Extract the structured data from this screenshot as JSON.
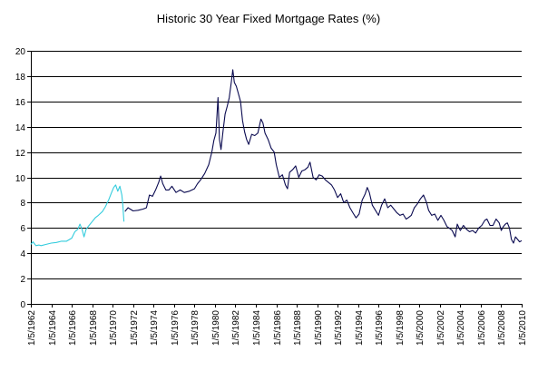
{
  "chart_data": {
    "type": "line",
    "title": "Historic 30 Year Fixed Mortgage Rates (%)",
    "xlabel": "",
    "ylabel": "",
    "ylim": [
      0,
      20
    ],
    "y_ticks": [
      0,
      2,
      4,
      6,
      8,
      10,
      12,
      14,
      16,
      18,
      20
    ],
    "x_range": [
      1962.0,
      2010.0
    ],
    "x_ticks": [
      "1/5/1962",
      "1/5/1964",
      "1/5/1966",
      "1/5/1968",
      "1/5/1970",
      "1/5/1972",
      "1/5/1974",
      "1/5/1976",
      "1/5/1978",
      "1/5/1980",
      "1/5/1982",
      "1/5/1984",
      "1/5/1986",
      "1/5/1988",
      "1/5/1990",
      "1/5/1992",
      "1/5/1994",
      "1/5/1996",
      "1/5/1998",
      "1/5/2000",
      "1/5/2002",
      "1/5/2004",
      "1/5/2006",
      "1/5/2008",
      "1/5/2010"
    ],
    "grid": "horizontal",
    "legend": "none",
    "series": [
      {
        "color": "#33ccdd",
        "points": [
          [
            1962.0,
            4.7
          ],
          [
            1962.2,
            4.9
          ],
          [
            1962.5,
            4.6
          ],
          [
            1962.8,
            4.65
          ],
          [
            1963.0,
            4.6
          ],
          [
            1963.5,
            4.7
          ],
          [
            1964.0,
            4.8
          ],
          [
            1964.5,
            4.85
          ],
          [
            1965.0,
            4.95
          ],
          [
            1965.5,
            4.95
          ],
          [
            1966.0,
            5.2
          ],
          [
            1966.3,
            5.7
          ],
          [
            1966.6,
            5.9
          ],
          [
            1966.8,
            6.3
          ],
          [
            1967.0,
            5.9
          ],
          [
            1967.2,
            5.3
          ],
          [
            1967.4,
            5.9
          ],
          [
            1967.7,
            6.2
          ],
          [
            1968.0,
            6.5
          ],
          [
            1968.3,
            6.8
          ],
          [
            1968.6,
            7.0
          ],
          [
            1969.0,
            7.3
          ],
          [
            1969.3,
            7.7
          ],
          [
            1969.6,
            8.2
          ],
          [
            1969.9,
            8.8
          ],
          [
            1970.1,
            9.2
          ],
          [
            1970.3,
            9.4
          ],
          [
            1970.5,
            8.9
          ],
          [
            1970.7,
            9.3
          ],
          [
            1970.9,
            8.6
          ],
          [
            1971.0,
            7.8
          ],
          [
            1971.1,
            6.5
          ]
        ]
      },
      {
        "color": "#0a0a50",
        "points": [
          [
            1971.2,
            7.3
          ],
          [
            1971.5,
            7.6
          ],
          [
            1972.0,
            7.35
          ],
          [
            1972.5,
            7.4
          ],
          [
            1973.0,
            7.5
          ],
          [
            1973.3,
            7.6
          ],
          [
            1973.6,
            8.6
          ],
          [
            1973.9,
            8.5
          ],
          [
            1974.2,
            9.0
          ],
          [
            1974.5,
            9.6
          ],
          [
            1974.7,
            10.1
          ],
          [
            1974.9,
            9.5
          ],
          [
            1975.2,
            9.0
          ],
          [
            1975.5,
            9.0
          ],
          [
            1975.8,
            9.3
          ],
          [
            1976.2,
            8.8
          ],
          [
            1976.6,
            9.0
          ],
          [
            1977.0,
            8.8
          ],
          [
            1977.5,
            8.9
          ],
          [
            1978.0,
            9.1
          ],
          [
            1978.3,
            9.5
          ],
          [
            1978.6,
            9.8
          ],
          [
            1979.0,
            10.3
          ],
          [
            1979.4,
            11.0
          ],
          [
            1979.7,
            12.0
          ],
          [
            1979.9,
            12.9
          ],
          [
            1980.1,
            13.5
          ],
          [
            1980.3,
            16.3
          ],
          [
            1980.45,
            13.0
          ],
          [
            1980.6,
            12.2
          ],
          [
            1980.8,
            13.7
          ],
          [
            1981.0,
            15.0
          ],
          [
            1981.2,
            15.6
          ],
          [
            1981.4,
            16.3
          ],
          [
            1981.6,
            17.5
          ],
          [
            1981.75,
            18.5
          ],
          [
            1981.9,
            17.5
          ],
          [
            1982.1,
            17.2
          ],
          [
            1982.3,
            16.6
          ],
          [
            1982.5,
            16.0
          ],
          [
            1982.7,
            14.5
          ],
          [
            1982.9,
            13.6
          ],
          [
            1983.1,
            13.0
          ],
          [
            1983.3,
            12.6
          ],
          [
            1983.6,
            13.4
          ],
          [
            1983.9,
            13.3
          ],
          [
            1984.2,
            13.5
          ],
          [
            1984.5,
            14.6
          ],
          [
            1984.7,
            14.3
          ],
          [
            1984.9,
            13.5
          ],
          [
            1985.2,
            13.0
          ],
          [
            1985.5,
            12.3
          ],
          [
            1985.8,
            12.0
          ],
          [
            1986.0,
            11.0
          ],
          [
            1986.3,
            10.0
          ],
          [
            1986.6,
            10.2
          ],
          [
            1986.9,
            9.4
          ],
          [
            1987.1,
            9.1
          ],
          [
            1987.3,
            10.4
          ],
          [
            1987.6,
            10.6
          ],
          [
            1987.9,
            10.9
          ],
          [
            1988.2,
            10.0
          ],
          [
            1988.5,
            10.5
          ],
          [
            1988.8,
            10.6
          ],
          [
            1989.1,
            10.8
          ],
          [
            1989.3,
            11.2
          ],
          [
            1989.6,
            10.0
          ],
          [
            1989.9,
            9.8
          ],
          [
            1990.2,
            10.2
          ],
          [
            1990.5,
            10.1
          ],
          [
            1990.8,
            9.8
          ],
          [
            1991.1,
            9.6
          ],
          [
            1991.4,
            9.4
          ],
          [
            1991.7,
            9.0
          ],
          [
            1992.0,
            8.4
          ],
          [
            1992.3,
            8.7
          ],
          [
            1992.6,
            8.0
          ],
          [
            1992.9,
            8.2
          ],
          [
            1993.2,
            7.6
          ],
          [
            1993.5,
            7.2
          ],
          [
            1993.8,
            6.8
          ],
          [
            1994.1,
            7.1
          ],
          [
            1994.4,
            8.2
          ],
          [
            1994.7,
            8.7
          ],
          [
            1994.9,
            9.2
          ],
          [
            1995.1,
            8.8
          ],
          [
            1995.4,
            7.8
          ],
          [
            1995.7,
            7.4
          ],
          [
            1996.0,
            7.0
          ],
          [
            1996.3,
            7.8
          ],
          [
            1996.6,
            8.3
          ],
          [
            1996.9,
            7.6
          ],
          [
            1997.2,
            7.8
          ],
          [
            1997.5,
            7.5
          ],
          [
            1997.8,
            7.2
          ],
          [
            1998.1,
            7.0
          ],
          [
            1998.4,
            7.1
          ],
          [
            1998.7,
            6.7
          ],
          [
            1998.9,
            6.8
          ],
          [
            1999.2,
            7.0
          ],
          [
            1999.5,
            7.6
          ],
          [
            1999.8,
            7.9
          ],
          [
            2000.1,
            8.3
          ],
          [
            2000.4,
            8.6
          ],
          [
            2000.7,
            8.0
          ],
          [
            2000.9,
            7.4
          ],
          [
            2001.2,
            7.0
          ],
          [
            2001.5,
            7.1
          ],
          [
            2001.8,
            6.6
          ],
          [
            2002.1,
            7.0
          ],
          [
            2002.4,
            6.6
          ],
          [
            2002.7,
            6.1
          ],
          [
            2002.9,
            6.0
          ],
          [
            2003.2,
            5.8
          ],
          [
            2003.5,
            5.3
          ],
          [
            2003.7,
            6.3
          ],
          [
            2004.0,
            5.8
          ],
          [
            2004.3,
            6.2
          ],
          [
            2004.6,
            5.9
          ],
          [
            2004.9,
            5.7
          ],
          [
            2005.2,
            5.8
          ],
          [
            2005.5,
            5.6
          ],
          [
            2005.8,
            6.0
          ],
          [
            2006.1,
            6.2
          ],
          [
            2006.4,
            6.6
          ],
          [
            2006.6,
            6.7
          ],
          [
            2006.9,
            6.2
          ],
          [
            2007.2,
            6.2
          ],
          [
            2007.5,
            6.7
          ],
          [
            2007.8,
            6.4
          ],
          [
            2008.0,
            5.8
          ],
          [
            2008.2,
            6.1
          ],
          [
            2008.4,
            6.3
          ],
          [
            2008.6,
            6.4
          ],
          [
            2008.8,
            6.0
          ],
          [
            2009.0,
            5.1
          ],
          [
            2009.2,
            4.8
          ],
          [
            2009.4,
            5.3
          ],
          [
            2009.6,
            5.1
          ],
          [
            2009.8,
            4.9
          ],
          [
            2010.0,
            5.0
          ]
        ]
      }
    ]
  }
}
